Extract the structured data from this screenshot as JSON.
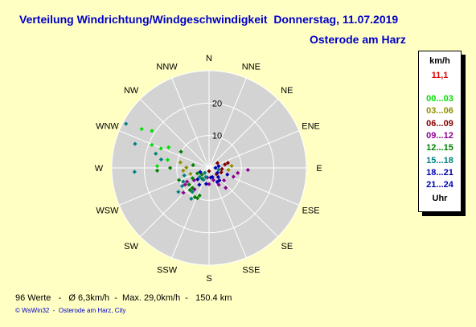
{
  "header": {
    "title": "Verteilung Windrichtung/Windgeschwindigkeit  Donnerstag, 11.07.2019",
    "location": "Osterode am Harz"
  },
  "footer": {
    "stats": "96 Werte   -   Ø 6,3km/h  -  Max. 29,0km/h  -   150.4 km",
    "credit": "© WsWin32  -  Osterode am Harz, City"
  },
  "legend": {
    "unit": "km/h",
    "max": "11,1",
    "max_color": "#e00000",
    "suffix": "Uhr",
    "ranges": [
      {
        "label": "00...03",
        "color": "#00e000"
      },
      {
        "label": "03...06",
        "color": "#909000"
      },
      {
        "label": "06...09",
        "color": "#800000"
      },
      {
        "label": "09...12",
        "color": "#900090"
      },
      {
        "label": "12...15",
        "color": "#008000"
      },
      {
        "label": "15...18",
        "color": "#008080"
      },
      {
        "label": "18...21",
        "color": "#0000b0"
      },
      {
        "label": "21...24",
        "color": "#0000b0"
      }
    ]
  },
  "chart_data": {
    "type": "scatter",
    "coordinate_system": "polar",
    "radial_max": 30,
    "radial_ticks": [
      {
        "value": 10,
        "label": "10"
      },
      {
        "value": 20,
        "label": "20"
      }
    ],
    "directions": [
      "N",
      "NNE",
      "NE",
      "ENE",
      "E",
      "ESE",
      "SE",
      "SSE",
      "S",
      "SSW",
      "SW",
      "WSW",
      "W",
      "WNW",
      "NW",
      "NNW"
    ],
    "series": [
      {
        "name": "00...03",
        "color": "#00e000",
        "points": [
          [
            300,
            24
          ],
          [
            303,
            21
          ],
          [
            292,
            19
          ],
          [
            292,
            16
          ],
          [
            297,
            14
          ],
          [
            281,
            13
          ],
          [
            272,
            16
          ]
        ]
      },
      {
        "name": "03...06",
        "color": "#909000",
        "points": [
          [
            281,
            9
          ],
          [
            264,
            8
          ],
          [
            271,
            7
          ],
          [
            252,
            6
          ],
          [
            85,
            7
          ],
          [
            96,
            6
          ]
        ]
      },
      {
        "name": "06...09",
        "color": "#800000",
        "points": [
          [
            75,
            6
          ],
          [
            95,
            4
          ],
          [
            78,
            5
          ],
          [
            110,
            4
          ],
          [
            130,
            3
          ],
          [
            180,
            1
          ],
          [
            60,
            3
          ]
        ]
      },
      {
        "name": "09...12",
        "color": "#900090",
        "points": [
          [
            93,
            12
          ],
          [
            110,
            8
          ],
          [
            130,
            6
          ],
          [
            150,
            6
          ],
          [
            180,
            5
          ],
          [
            214,
            8
          ],
          [
            226,
            11
          ],
          [
            235,
            9
          ],
          [
            100,
            9
          ],
          [
            140,
            8
          ],
          [
            160,
            4
          ],
          [
            190,
            3
          ],
          [
            230,
            6
          ],
          [
            238,
            8
          ]
        ]
      },
      {
        "name": "12...15",
        "color": "#008000",
        "points": [
          [
            267,
            16
          ],
          [
            270,
            12
          ],
          [
            248,
            10
          ],
          [
            230,
            8
          ],
          [
            221,
            9
          ],
          [
            199,
            9
          ],
          [
            201,
            10
          ],
          [
            206,
            10
          ],
          [
            220,
            8
          ],
          [
            212,
            4
          ],
          [
            238,
            6
          ],
          [
            300,
            10
          ],
          [
            280,
            5
          ],
          [
            245,
            4
          ],
          [
            227,
            3
          ]
        ]
      },
      {
        "name": "15...18",
        "color": "#008080",
        "points": [
          [
            298,
            29
          ],
          [
            288,
            24
          ],
          [
            267,
            23
          ],
          [
            280,
            15
          ],
          [
            285,
            17
          ],
          [
            253,
            8
          ],
          [
            242,
            9
          ],
          [
            236,
            10
          ],
          [
            232,
            12
          ],
          [
            205,
            4
          ],
          [
            215,
            9
          ],
          [
            210,
            11
          ],
          [
            226,
            4
          ],
          [
            100,
            3
          ],
          [
            200,
            3
          ],
          [
            220,
            2
          ]
        ]
      },
      {
        "name": "18...21",
        "color": "#0000b0",
        "points": [
          [
            80,
            3
          ],
          [
            90,
            2
          ],
          [
            120,
            3
          ],
          [
            140,
            5
          ],
          [
            160,
            3
          ],
          [
            190,
            5
          ],
          [
            210,
            6
          ],
          [
            225,
            5
          ],
          [
            110,
            6
          ],
          [
            135,
            4
          ]
        ]
      },
      {
        "name": "21...24",
        "color": "#0000b0",
        "points": [
          [
            245,
            3
          ],
          [
            150,
            5
          ],
          [
            170,
            3
          ]
        ]
      }
    ]
  }
}
